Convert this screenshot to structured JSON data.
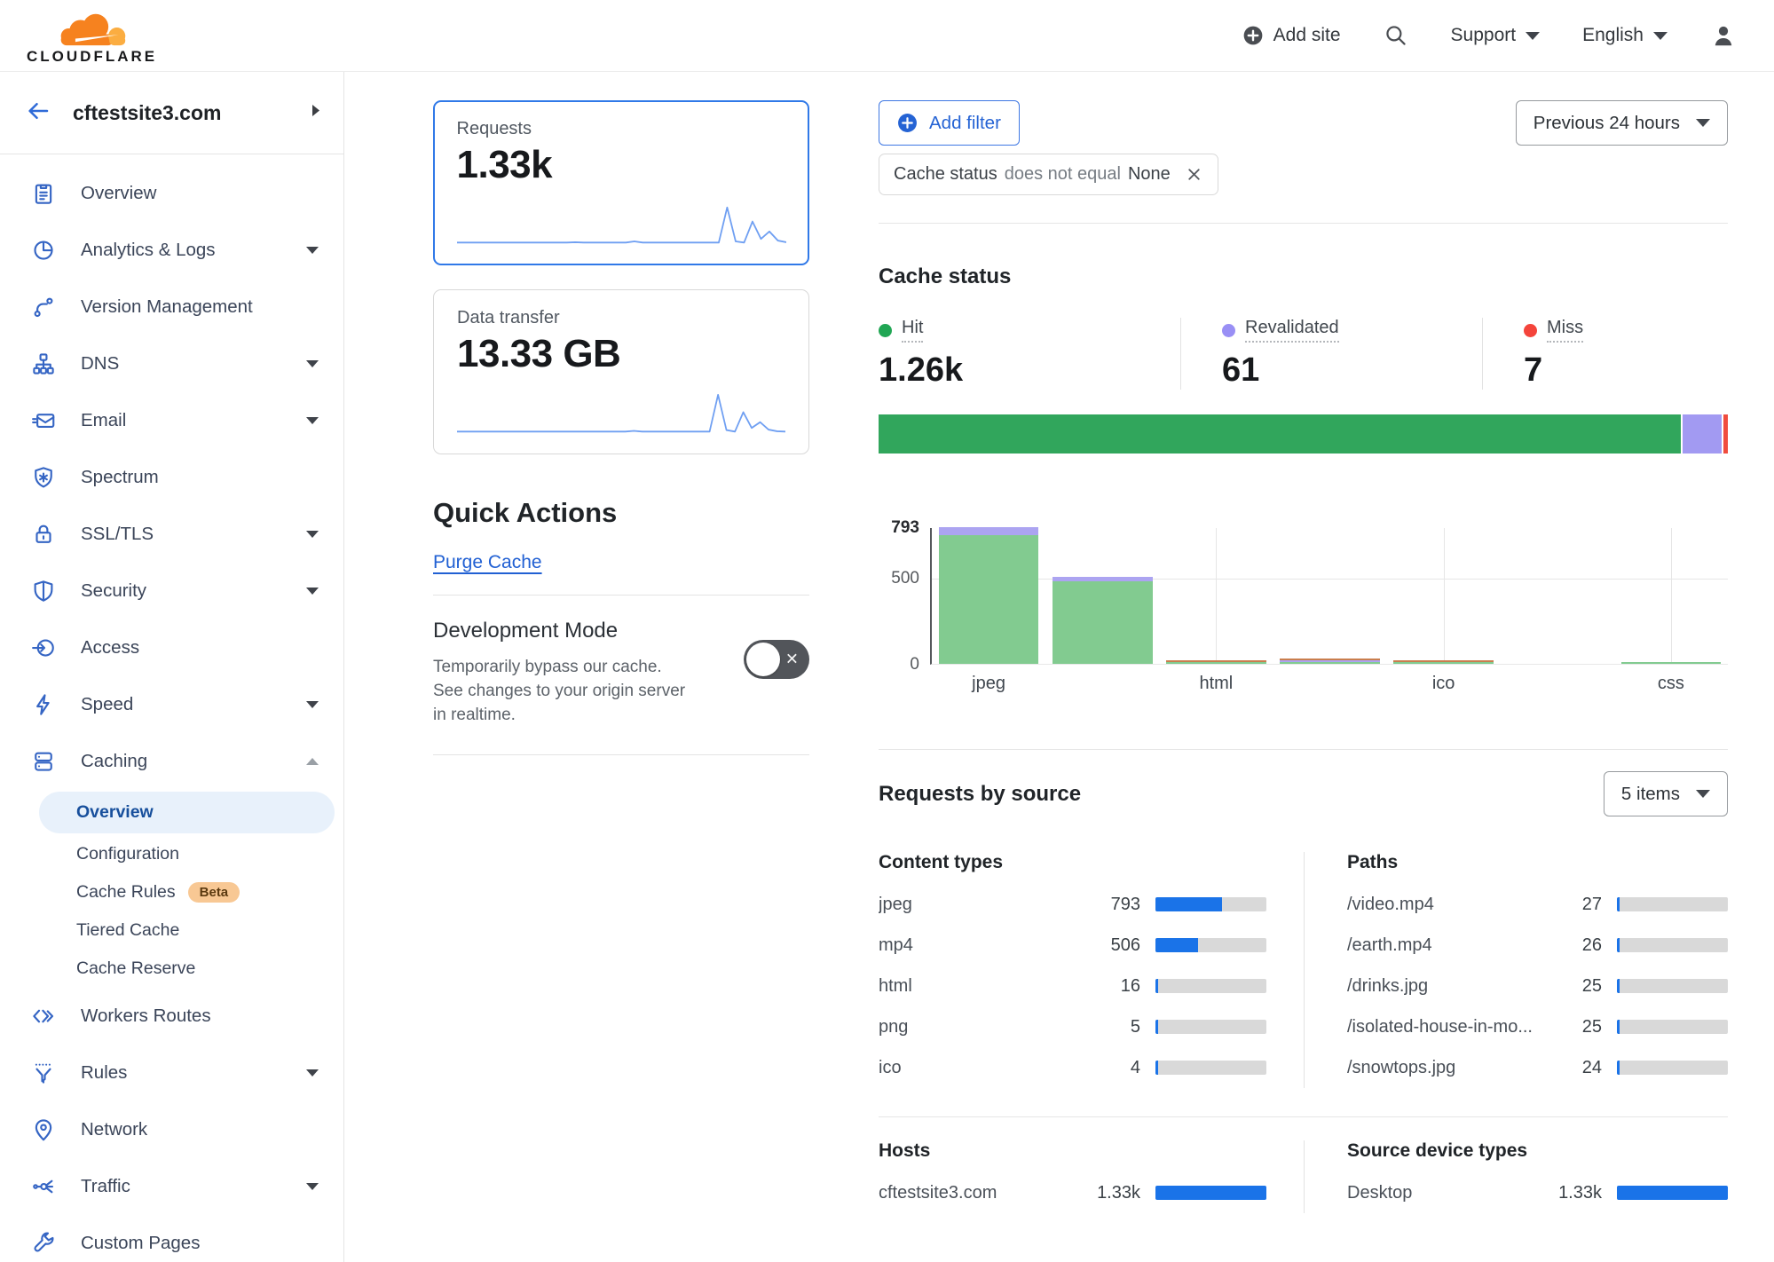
{
  "brand": {
    "wordmark": "CLOUDFLARE",
    "orange": "#f6821f",
    "orange_light": "#fbad41"
  },
  "topbar": {
    "add_site": "Add site",
    "support": "Support",
    "language": "English"
  },
  "sidebar": {
    "site": "cftestsite3.com",
    "nav": [
      {
        "type": "item",
        "label": "Overview",
        "icon": "overview-icon"
      },
      {
        "type": "item",
        "label": "Analytics & Logs",
        "icon": "analytics-icon",
        "caret": "down"
      },
      {
        "type": "item",
        "label": "Version Management",
        "icon": "version-icon"
      },
      {
        "type": "item",
        "label": "DNS",
        "icon": "dns-icon",
        "caret": "down"
      },
      {
        "type": "item",
        "label": "Email",
        "icon": "email-icon",
        "caret": "down"
      },
      {
        "type": "item",
        "label": "Spectrum",
        "icon": "spectrum-icon"
      },
      {
        "type": "item",
        "label": "SSL/TLS",
        "icon": "ssl-icon",
        "caret": "down"
      },
      {
        "type": "item",
        "label": "Security",
        "icon": "security-icon",
        "caret": "down"
      },
      {
        "type": "item",
        "label": "Access",
        "icon": "access-icon"
      },
      {
        "type": "item",
        "label": "Speed",
        "icon": "speed-icon",
        "caret": "down"
      },
      {
        "type": "item",
        "label": "Caching",
        "icon": "caching-icon",
        "caret": "up",
        "expanded": true
      },
      {
        "type": "sub",
        "label": "Overview",
        "active": true
      },
      {
        "type": "sub",
        "label": "Configuration"
      },
      {
        "type": "sub",
        "label": "Cache Rules",
        "badge": "Beta"
      },
      {
        "type": "sub",
        "label": "Tiered Cache"
      },
      {
        "type": "sub",
        "label": "Cache Reserve"
      },
      {
        "type": "item",
        "label": "Workers Routes",
        "icon": "workers-icon"
      },
      {
        "type": "item",
        "label": "Rules",
        "icon": "rules-icon",
        "caret": "down"
      },
      {
        "type": "item",
        "label": "Network",
        "icon": "network-icon"
      },
      {
        "type": "item",
        "label": "Traffic",
        "icon": "traffic-icon",
        "caret": "down"
      },
      {
        "type": "item",
        "label": "Custom Pages",
        "icon": "custom-pages-icon"
      }
    ]
  },
  "metrics": {
    "requests": {
      "label": "Requests",
      "value": "1.33k",
      "selected": true
    },
    "data_transfer": {
      "label": "Data transfer",
      "value": "13.33 GB",
      "selected": false
    }
  },
  "quick_actions": {
    "title": "Quick Actions",
    "purge_label": "Purge Cache",
    "dev_mode": {
      "title": "Development Mode",
      "description": "Temporarily bypass our cache. See changes to your origin server in realtime.",
      "enabled": false
    }
  },
  "filters": {
    "add_filter_label": "Add filter",
    "chip": {
      "field": "Cache status",
      "operator": "does not equal",
      "value": "None"
    },
    "time_range": "Previous 24 hours"
  },
  "cache_status": {
    "title": "Cache status",
    "stats": [
      {
        "label": "Hit",
        "value": "1.26k",
        "num": 1260,
        "color": "#21a654"
      },
      {
        "label": "Revalidated",
        "value": "61",
        "num": 61,
        "color": "#998ff5"
      },
      {
        "label": "Miss",
        "value": "7",
        "num": 7,
        "color": "#f4443b"
      }
    ]
  },
  "requests_by_source": {
    "title": "Requests by source",
    "items_label": "5 items",
    "scale_total": 1330,
    "tables": [
      {
        "title": "Content types",
        "rows": [
          {
            "label": "jpeg",
            "value": "793",
            "num": 793
          },
          {
            "label": "mp4",
            "value": "506",
            "num": 506
          },
          {
            "label": "html",
            "value": "16",
            "num": 16
          },
          {
            "label": "png",
            "value": "5",
            "num": 5
          },
          {
            "label": "ico",
            "value": "4",
            "num": 4
          }
        ]
      },
      {
        "title": "Paths",
        "rows": [
          {
            "label": "/video.mp4",
            "value": "27",
            "num": 27
          },
          {
            "label": "/earth.mp4",
            "value": "26",
            "num": 26
          },
          {
            "label": "/drinks.jpg",
            "value": "25",
            "num": 25
          },
          {
            "label": "/isolated-house-in-mo...",
            "value": "25",
            "num": 25
          },
          {
            "label": "/snowtops.jpg",
            "value": "24",
            "num": 24
          }
        ]
      },
      {
        "title": "Hosts",
        "rows": [
          {
            "label": "cftestsite3.com",
            "value": "1.33k",
            "num": 1330
          }
        ]
      },
      {
        "title": "Source device types",
        "rows": [
          {
            "label": "Desktop",
            "value": "1.33k",
            "num": 1330
          }
        ]
      }
    ]
  },
  "chart_data": [
    {
      "id": "requests-sparkline",
      "type": "line",
      "title": "Requests over previous 24 hours (sparkline)",
      "values": [
        3,
        3,
        3,
        3,
        3,
        3,
        3,
        3,
        3,
        3,
        3,
        3,
        3,
        3,
        4,
        3,
        3,
        3,
        3,
        3,
        3,
        6,
        3,
        3,
        3,
        3,
        3,
        3,
        3,
        3,
        3,
        3,
        88,
        6,
        3,
        54,
        12,
        30,
        8,
        4
      ],
      "line_color": "#6f9ff2"
    },
    {
      "id": "transfer-sparkline",
      "type": "line",
      "title": "Data transfer over previous 24 hours (sparkline)",
      "values": [
        3,
        3,
        3,
        3,
        3,
        3,
        3,
        3,
        3,
        3,
        3,
        3,
        3,
        3,
        3,
        3,
        3,
        3,
        3,
        3,
        3,
        5,
        3,
        3,
        3,
        3,
        3,
        3,
        3,
        3,
        3,
        92,
        7,
        3,
        50,
        12,
        26,
        8,
        4,
        3
      ],
      "line_color": "#6f9ff2"
    },
    {
      "id": "cache-status-summary",
      "type": "bar",
      "subtype": "horizontal-stacked-100pct",
      "title": "Cache status share of requests",
      "segments": [
        {
          "name": "Hit",
          "value": 1260,
          "color": "#31a65c"
        },
        {
          "name": "Revalidated",
          "value": 61,
          "color": "#a29af2"
        },
        {
          "name": "Miss",
          "value": 7,
          "color": "#f04c3e"
        }
      ],
      "total": 1328
    },
    {
      "id": "cache-status-bars",
      "type": "bar",
      "subtype": "stacked-vertical",
      "title": "Cache status by content type",
      "categories": [
        "jpeg",
        "mp4",
        "html",
        "png",
        "ico",
        "",
        "css"
      ],
      "series": [
        {
          "name": "Hit",
          "color": "#82cb90",
          "values": [
            748,
            480,
            8,
            3,
            3,
            0,
            1
          ]
        },
        {
          "name": "Revalidated",
          "color": "#aca4f1",
          "values": [
            45,
            26,
            0,
            1,
            0,
            0,
            0
          ]
        },
        {
          "name": "Miss",
          "color": "#c97e4e",
          "values": [
            0,
            0,
            8,
            1,
            1,
            0,
            0
          ]
        }
      ],
      "yticks": [
        793,
        500,
        0
      ],
      "ymax": 793,
      "xtick_indexes": [
        0,
        2,
        4,
        6
      ],
      "grid": true,
      "legend_position": "none"
    }
  ]
}
